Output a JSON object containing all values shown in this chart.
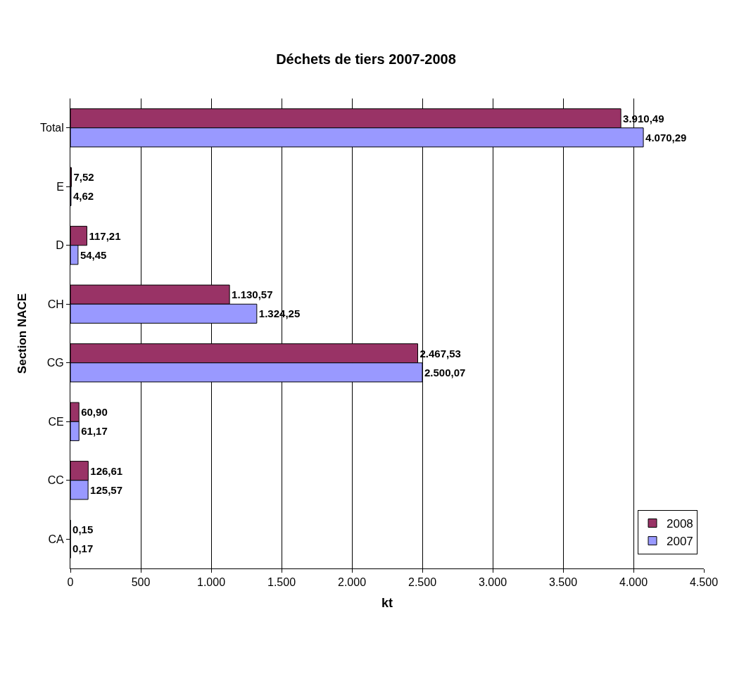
{
  "chart_data": {
    "type": "bar",
    "orientation": "horizontal",
    "title": "Déchets de tiers 2007-2008",
    "xlabel": "kt",
    "ylabel": "Section NACE",
    "categories": [
      "Total",
      "E",
      "D",
      "CH",
      "CG",
      "CE",
      "CC",
      "CA"
    ],
    "series": [
      {
        "name": "2008",
        "color": "#993366",
        "values": [
          3910.49,
          7.52,
          117.21,
          1130.57,
          2467.53,
          60.9,
          126.61,
          0.15
        ],
        "value_labels": [
          "3.910,49",
          "7,52",
          "117,21",
          "1.130,57",
          "2.467,53",
          "60,90",
          "126,61",
          "0,15"
        ]
      },
      {
        "name": "2007",
        "color": "#9999ff",
        "values": [
          4070.29,
          4.62,
          54.45,
          1324.25,
          2500.07,
          61.17,
          125.57,
          0.17
        ],
        "value_labels": [
          "4.070,29",
          "4,62",
          "54,45",
          "1.324,25",
          "2.500,07",
          "61,17",
          "125,57",
          "0,17"
        ]
      }
    ],
    "xlim": [
      0,
      4500
    ],
    "xticks": [
      {
        "value": 0,
        "label": "0"
      },
      {
        "value": 500,
        "label": "500"
      },
      {
        "value": 1000,
        "label": "1.000"
      },
      {
        "value": 1500,
        "label": "1.500"
      },
      {
        "value": 2000,
        "label": "2.000"
      },
      {
        "value": 2500,
        "label": "2.500"
      },
      {
        "value": 3000,
        "label": "3.000"
      },
      {
        "value": 3500,
        "label": "3.500"
      },
      {
        "value": 4000,
        "label": "4.000"
      },
      {
        "value": 4500,
        "label": "4.500"
      }
    ],
    "grid": "x",
    "legend": "bottom right"
  }
}
